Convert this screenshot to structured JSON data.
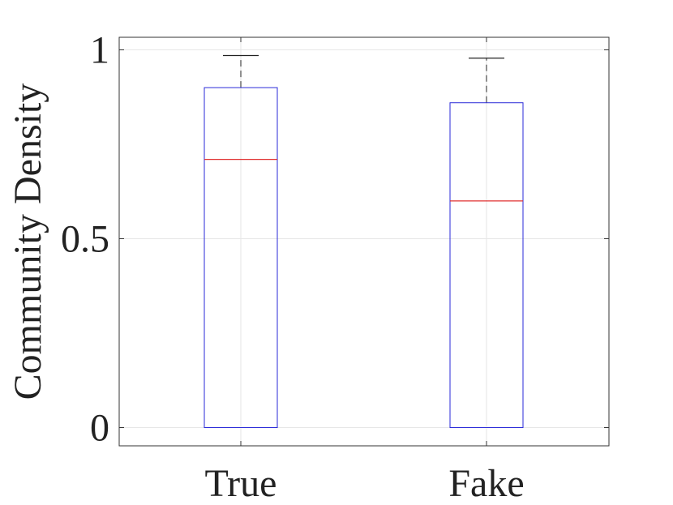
{
  "chart_data": {
    "type": "boxplot",
    "title": "",
    "xlabel": "",
    "ylabel": "Community Density",
    "ylim": [
      -0.05,
      1.03
    ],
    "grid": true,
    "yticks": [
      0,
      0.5,
      1
    ],
    "ytick_labels": [
      "0",
      "0.5",
      "1"
    ],
    "categories": [
      "True",
      "Fake"
    ],
    "boxes": [
      {
        "category": "True",
        "whisker_low": 0,
        "q1": 0,
        "median": 0.71,
        "q3": 0.9,
        "whisker_high": 0.985
      },
      {
        "category": "Fake",
        "whisker_low": 0,
        "q1": 0,
        "median": 0.6,
        "q3": 0.86,
        "whisker_high": 0.978
      }
    ],
    "colors": {
      "box": "#2a2ad8",
      "median": "#e03030",
      "whisker": "#222222",
      "grid": "#e6e6e6",
      "axes": "#333333"
    }
  }
}
